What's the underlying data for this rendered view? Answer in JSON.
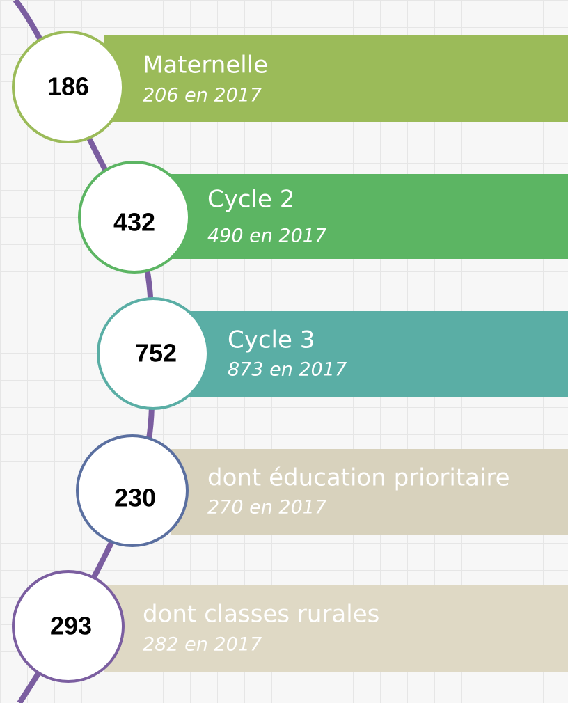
{
  "items": [
    {
      "number": 186,
      "label": "Maternelle",
      "sub": "206 en 2017"
    },
    {
      "number": 432,
      "label": "Cycle 2",
      "sub": "490 en 2017"
    },
    {
      "number": 752,
      "label": "Cycle 3",
      "sub": "873 en 2017"
    },
    {
      "number": 230,
      "label": "dont éducation prioritaire",
      "sub": "270 en 2017"
    },
    {
      "number": 293,
      "label": "dont classes rurales",
      "sub": "282 en 2017"
    }
  ]
}
